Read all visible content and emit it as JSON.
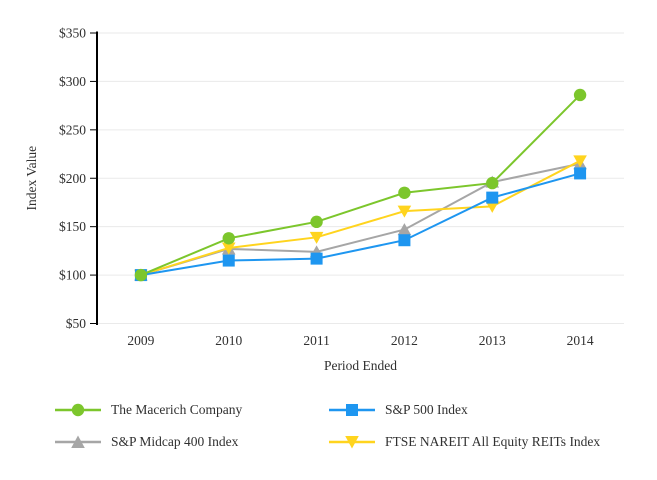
{
  "chart_data": {
    "type": "line",
    "title": "",
    "xlabel": "Period Ended",
    "ylabel": "Index Value",
    "categories": [
      "2009",
      "2010",
      "2011",
      "2012",
      "2013",
      "2014"
    ],
    "ylim": [
      50,
      350
    ],
    "y_tick_step": 50,
    "y_tick_prefix": "$",
    "y_tick_labels": [
      "$350",
      "$300",
      "$250",
      "$200",
      "$150",
      "$100",
      "$50"
    ],
    "grid": "horizontal-only",
    "legend_position": "bottom",
    "colors": {
      "grid": "#EAEAEA",
      "axis": "#000000",
      "text": "#303030",
      "background": "#FFFFFF"
    },
    "series": [
      {
        "id": "macerich",
        "name": "The Macerich Company",
        "marker": "circle",
        "color": "#7CC62C",
        "values": [
          100,
          138,
          155,
          185,
          195,
          286
        ]
      },
      {
        "id": "sp500",
        "name": "S&P 500 Index",
        "marker": "square",
        "color": "#1E96F0",
        "values": [
          100,
          115,
          117,
          136,
          180,
          205
        ]
      },
      {
        "id": "midcap400",
        "name": "S&P Midcap 400 Index",
        "marker": "triangle-up",
        "color": "#A6A6A6",
        "values": [
          100,
          127,
          124,
          147,
          196,
          215
        ]
      },
      {
        "id": "nareit",
        "name": "FTSE NAREIT All Equity REITs Index",
        "marker": "triangle-down",
        "color": "#FFD41E",
        "values": [
          100,
          128,
          139,
          166,
          171,
          218
        ]
      }
    ]
  }
}
